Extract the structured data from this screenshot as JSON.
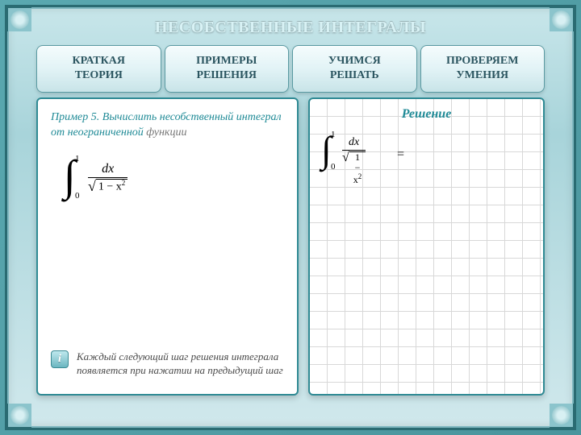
{
  "title": "НЕСОБСТВЕННЫЕ ИНТЕГРАЛЫ",
  "tabs": [
    "КРАТКАЯ\nТЕОРИЯ",
    "ПРИМЕРЫ\nРЕШЕНИЯ",
    "УЧИМСЯ\nРЕШАТЬ",
    "ПРОВЕРЯЕМ\nУМЕНИЯ"
  ],
  "left": {
    "prompt_lead": "Пример 5. ",
    "prompt_accent": "Вычислить несобственный интеграл от неограниченной ",
    "prompt_tail": "функции",
    "integral": {
      "lower": "0",
      "upper": "1",
      "numerator": "dx",
      "radicand": "1 − x",
      "exponent": "2"
    },
    "hint": "Каждый следующий шаг решения интеграла появляется при нажатии на предыдущий шаг"
  },
  "right": {
    "title": "Решение",
    "integral": {
      "lower": "0",
      "upper": "1",
      "numerator": "dx",
      "radicand": "1 − x",
      "exponent": "2",
      "equals": "="
    }
  },
  "colors": {
    "frame_border": "#2a6b72",
    "accent_text": "#1f8a96",
    "muted_text": "#757575",
    "panel_border": "#2f8a94",
    "grid_line": "#d8d8d8"
  }
}
